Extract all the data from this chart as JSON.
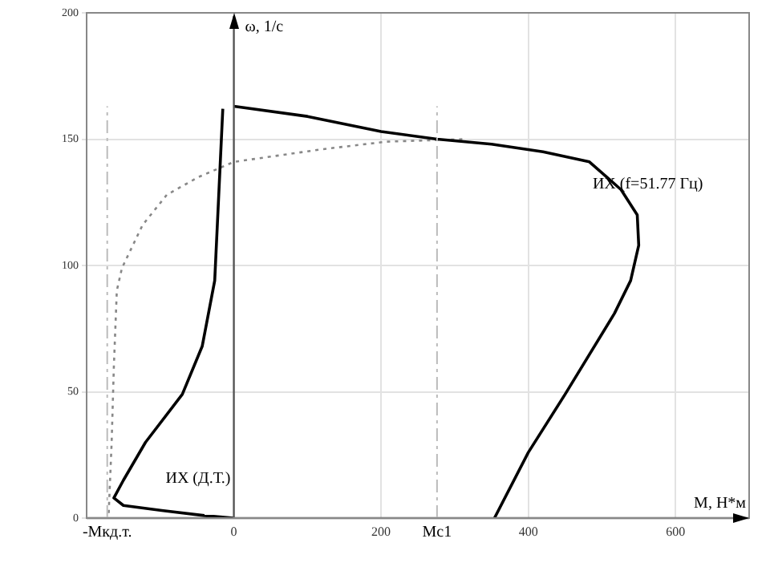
{
  "chart_data": {
    "type": "line",
    "xlabel": "М, Н*м",
    "ylabel": "ω, 1/с",
    "xlim": [
      -200,
      700
    ],
    "ylim": [
      0,
      200
    ],
    "xticks": [
      0,
      200,
      400,
      600
    ],
    "yticks": [
      0,
      50,
      100,
      150,
      200
    ],
    "grid": true,
    "legend": false,
    "marker": "none",
    "series": [
      {
        "name": "ИХ (f=51.77 Гц)",
        "color": "#000000",
        "line_style": "solid",
        "x": [
          0,
          100,
          200,
          276,
          350,
          420,
          483,
          526,
          548,
          550,
          539,
          517,
          450,
          400,
          354
        ],
        "values": [
          163,
          159,
          153,
          150,
          148,
          145,
          141,
          130,
          120,
          108,
          94,
          81,
          49,
          26,
          0
        ]
      },
      {
        "name": "ИХ (Д.Т.)",
        "color": "#000000",
        "line_style": "solid",
        "x": [
          0,
          -40,
          -98,
          -150,
          -163,
          -150,
          -120,
          -70,
          -43,
          -26,
          -15
        ],
        "values": [
          0,
          1,
          3,
          5,
          8,
          15,
          30,
          49,
          68,
          94,
          162
        ]
      },
      {
        "color": "#888888",
        "line_style": "dotted",
        "x": [
          -170,
          -166,
          -163,
          -159,
          -152,
          -124,
          -91,
          -48,
          0,
          120,
          207,
          315
        ],
        "values": [
          2,
          30,
          60,
          90,
          99,
          116,
          128,
          135,
          141,
          146,
          149,
          150
        ]
      }
    ],
    "ref_lines": [
      {
        "axis": "x",
        "value": -172,
        "label": "-Мкд.т.",
        "color": "#bbbbbb",
        "line_style": "dashdot"
      },
      {
        "axis": "x",
        "value": 276,
        "label": "Мс1",
        "color": "#bbbbbb",
        "line_style": "dashdot"
      }
    ]
  }
}
